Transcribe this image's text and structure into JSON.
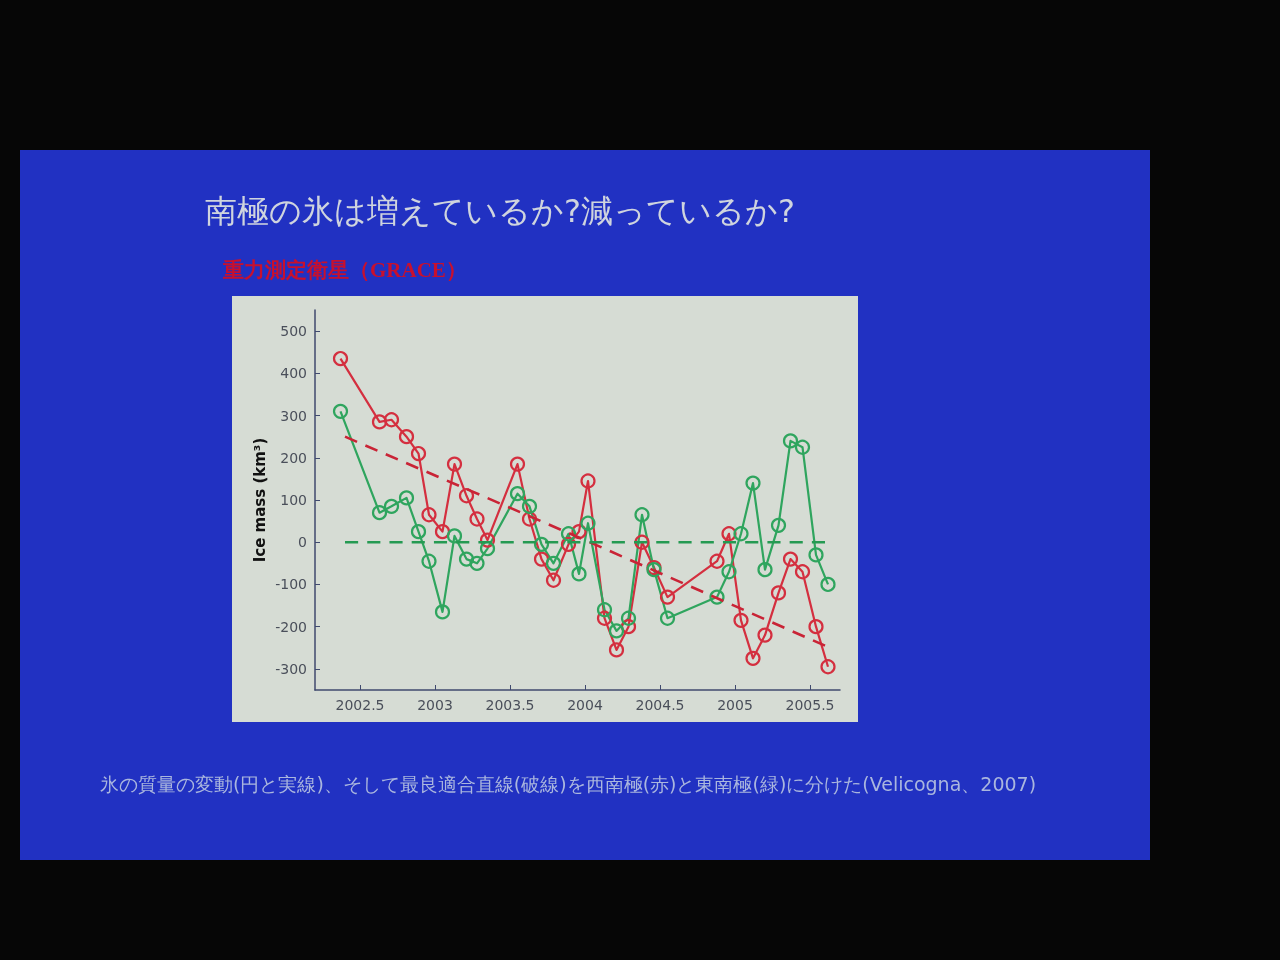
{
  "chart_data": {
    "type": "line",
    "title": "南極の氷は増えているか?減っているか?",
    "subtitle": "重力測定衛星（GRACE）",
    "ylabel": "Ice mass (km³)",
    "annotations": [
      "氷の質量の変動(円と実線)、そして最良適合直線(破線)を西南極(赤)と東南極(緑)に分けた(Velicogna、2007)"
    ],
    "x": [
      2002.37,
      2002.63,
      2002.71,
      2002.81,
      2002.89,
      2002.96,
      2003.05,
      2003.13,
      2003.21,
      2003.28,
      2003.35,
      2003.55,
      2003.63,
      2003.71,
      2003.79,
      2003.89,
      2003.96,
      2004.02,
      2004.13,
      2004.21,
      2004.29,
      2004.38,
      2004.46,
      2004.55,
      2004.88,
      2004.96,
      2005.04,
      2005.12,
      2005.2,
      2005.29,
      2005.37,
      2005.45,
      2005.54,
      2005.62
    ],
    "series": [
      {
        "color": "#d42f3f",
        "values": [
          435,
          285,
          290,
          250,
          210,
          65,
          25,
          185,
          110,
          55,
          5,
          185,
          55,
          -40,
          -90,
          -5,
          25,
          145,
          -180,
          -255,
          -200,
          0,
          -60,
          -130,
          -45,
          20,
          -185,
          -275,
          -220,
          -120,
          -40,
          -70,
          -200,
          -295
        ]
      },
      {
        "color": "#2fa55e",
        "values": [
          310,
          70,
          85,
          105,
          25,
          -45,
          -165,
          15,
          -40,
          -50,
          -15,
          115,
          85,
          -5,
          -50,
          20,
          -75,
          45,
          -160,
          -210,
          -180,
          65,
          -65,
          -180,
          -130,
          -70,
          20,
          140,
          -65,
          40,
          240,
          225,
          -30,
          -100
        ]
      },
      {
        "type": "line",
        "x": [
          2002.4,
          2004,
          2005.6
        ],
        "values": [
          250,
          5,
          -245
        ],
        "color": "#c92436",
        "line_style": "dashed",
        "marker": "none"
      },
      {
        "type": "line",
        "x": [
          2002.4,
          2004,
          2005.6
        ],
        "values": [
          0,
          0,
          0
        ],
        "color": "#259a52",
        "line_style": "dashed",
        "marker": "none"
      }
    ],
    "xlim": [
      2002.2,
      2005.7
    ],
    "xticks": [
      2002.5,
      2003,
      2003.5,
      2004,
      2004.5,
      2005,
      2005.5
    ],
    "ylim": [
      -350,
      550
    ],
    "yticks": [
      -300,
      -200,
      -100,
      0,
      100,
      200,
      300,
      400,
      500
    ],
    "marker": "circle",
    "line_style": "solid"
  }
}
